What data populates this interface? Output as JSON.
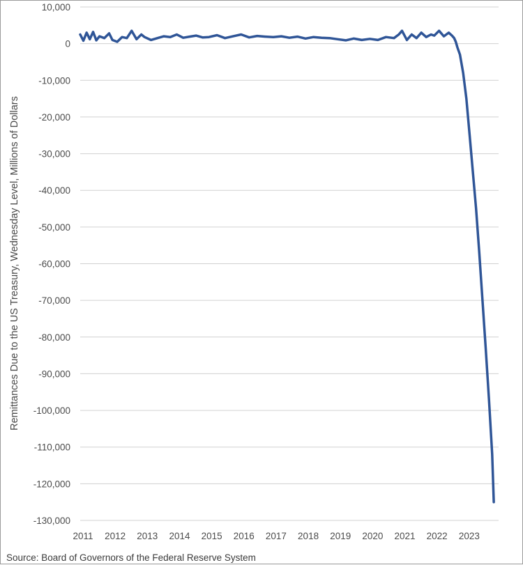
{
  "chart_data": {
    "type": "line",
    "title": "",
    "xlabel": "",
    "ylabel": "Remittances Due to the US Treasury, Wednesday Level, Millions of Dollars",
    "source": "Source: Board of Governors of the Federal Reserve System",
    "ylim": [
      -130000,
      10000
    ],
    "xlim": [
      2011,
      2024
    ],
    "grid": true,
    "legend": "none",
    "y_ticks": [
      10000,
      0,
      -10000,
      -20000,
      -30000,
      -40000,
      -50000,
      -60000,
      -70000,
      -80000,
      -90000,
      -100000,
      -110000,
      -120000,
      -130000
    ],
    "y_tick_labels": [
      "10,000",
      "0",
      "-10,000",
      "-20,000",
      "-30,000",
      "-40,000",
      "-50,000",
      "-60,000",
      "-70,000",
      "-80,000",
      "-90,000",
      "-100,000",
      "-110,000",
      "-120,000",
      "-130,000"
    ],
    "x_tick_labels": [
      "2011",
      "2012",
      "2013",
      "2014",
      "2015",
      "2016",
      "2017",
      "2018",
      "2019",
      "2020",
      "2021",
      "2022",
      "2023"
    ],
    "line_color": "#2f5597",
    "series": [
      {
        "x": [
          2011.0,
          2011.1,
          2011.2,
          2011.3,
          2011.4,
          2011.5,
          2011.6,
          2011.75,
          2011.9,
          2012.0,
          2012.15,
          2012.3,
          2012.45,
          2012.6,
          2012.75,
          2012.9,
          2013.0,
          2013.2,
          2013.4,
          2013.6,
          2013.8,
          2014.0,
          2014.2,
          2014.4,
          2014.6,
          2014.8,
          2015.0,
          2015.25,
          2015.5,
          2015.75,
          2016.0,
          2016.25,
          2016.5,
          2016.75,
          2017.0,
          2017.25,
          2017.5,
          2017.75,
          2018.0,
          2018.25,
          2018.5,
          2018.75,
          2019.0,
          2019.25,
          2019.5,
          2019.75,
          2020.0,
          2020.25,
          2020.5,
          2020.75,
          2020.9,
          2021.0,
          2021.15,
          2021.3,
          2021.45,
          2021.6,
          2021.75,
          2021.9,
          2022.0,
          2022.15,
          2022.3,
          2022.45,
          2022.55,
          2022.62,
          2022.67,
          2022.72,
          2022.8,
          2022.9,
          2023.0,
          2023.1,
          2023.2,
          2023.3,
          2023.4,
          2023.5,
          2023.6,
          2023.7,
          2023.8,
          2023.85
        ],
        "y": [
          2500,
          800,
          3000,
          1200,
          3200,
          900,
          2000,
          1500,
          2800,
          1000,
          500,
          1800,
          1500,
          3500,
          1200,
          2500,
          1800,
          1000,
          1500,
          2000,
          1800,
          2500,
          1600,
          1900,
          2200,
          1700,
          1800,
          2300,
          1500,
          2000,
          2500,
          1700,
          2100,
          1900,
          1800,
          2000,
          1600,
          1900,
          1400,
          1800,
          1600,
          1500,
          1200,
          900,
          1400,
          1000,
          1300,
          1000,
          1800,
          1500,
          2500,
          3500,
          1000,
          2500,
          1500,
          3000,
          1800,
          2500,
          2200,
          3500,
          2000,
          3000,
          2200,
          1500,
          500,
          -1000,
          -3000,
          -8000,
          -15000,
          -25000,
          -35000,
          -45000,
          -57000,
          -70000,
          -83000,
          -97000,
          -112000,
          -125000
        ]
      }
    ]
  }
}
